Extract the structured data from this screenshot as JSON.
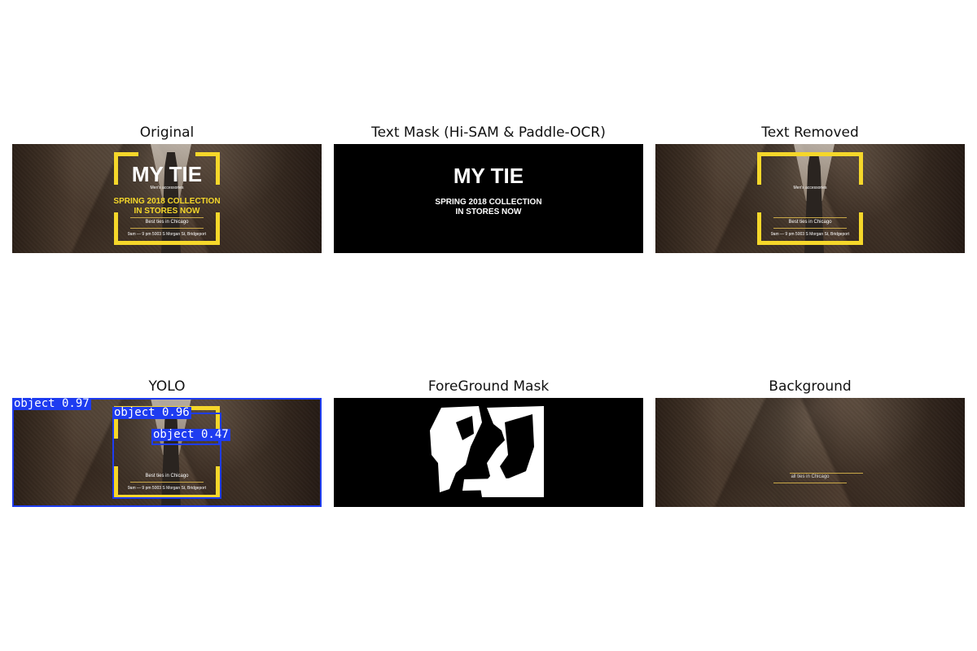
{
  "panels": {
    "original_title": "Original",
    "text_mask_title": "Text Mask (Hi-SAM & Paddle-OCR)",
    "text_removed_title": "Text Removed",
    "yolo_title": "YOLO",
    "foreground_title": "ForeGround Mask",
    "background_title": "Background"
  },
  "banner": {
    "headline": "MY TIE",
    "subhead": "Men's accessories",
    "collection": "SPRING 2018 COLLECTION",
    "stores": "IN STORES NOW",
    "best": "Best ties in Chicago",
    "address": "9am — 9 pm   5003 S Morgan St, Bridgeport"
  },
  "yolo": {
    "labels": [
      "object 0.97",
      "object 0.96",
      "object 0.47"
    ],
    "box_color": "#1e3cf0"
  },
  "background_panel": {
    "residue_text": "all ties in Chicago"
  },
  "colors": {
    "accent_yellow": "#f5d72a",
    "mask_bg": "#000000",
    "mask_fg": "#ffffff"
  }
}
